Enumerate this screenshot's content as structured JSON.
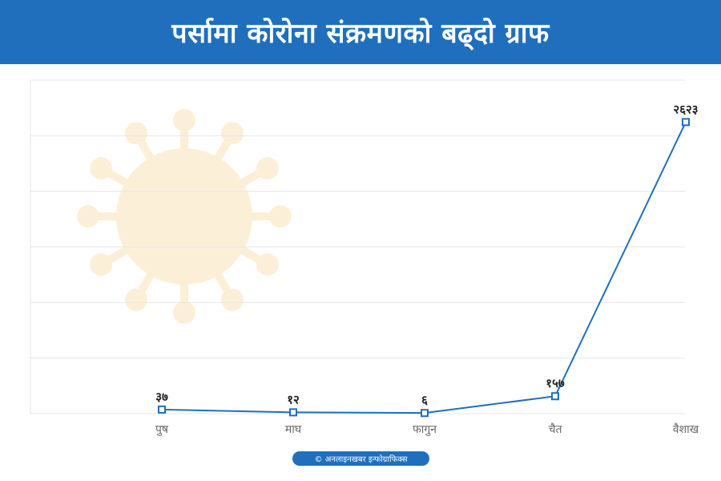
{
  "header": {
    "title": "पर्सामा कोरोना संक्रमणको बढ्दो ग्राफ"
  },
  "credit": "© अनलाइनखबर इन्फोग्राफिक्स",
  "colors": {
    "header_bg": "#1f6fbd",
    "line": "#1f6fbd",
    "grid": "#e6e6e6",
    "watermark": "#fcefd8"
  },
  "chart_data": {
    "type": "line",
    "categories": [
      "पुष",
      "माघ",
      "फागुन",
      "चैत",
      "वैशाख"
    ],
    "values": [
      37,
      12,
      6,
      157,
      2623
    ],
    "data_labels": [
      "३७",
      "१२",
      "६",
      "१५७",
      "२६२३"
    ],
    "ylim": [
      0,
      3000
    ],
    "grid": true,
    "legend": "none",
    "watermark_icon": "virus-icon"
  }
}
